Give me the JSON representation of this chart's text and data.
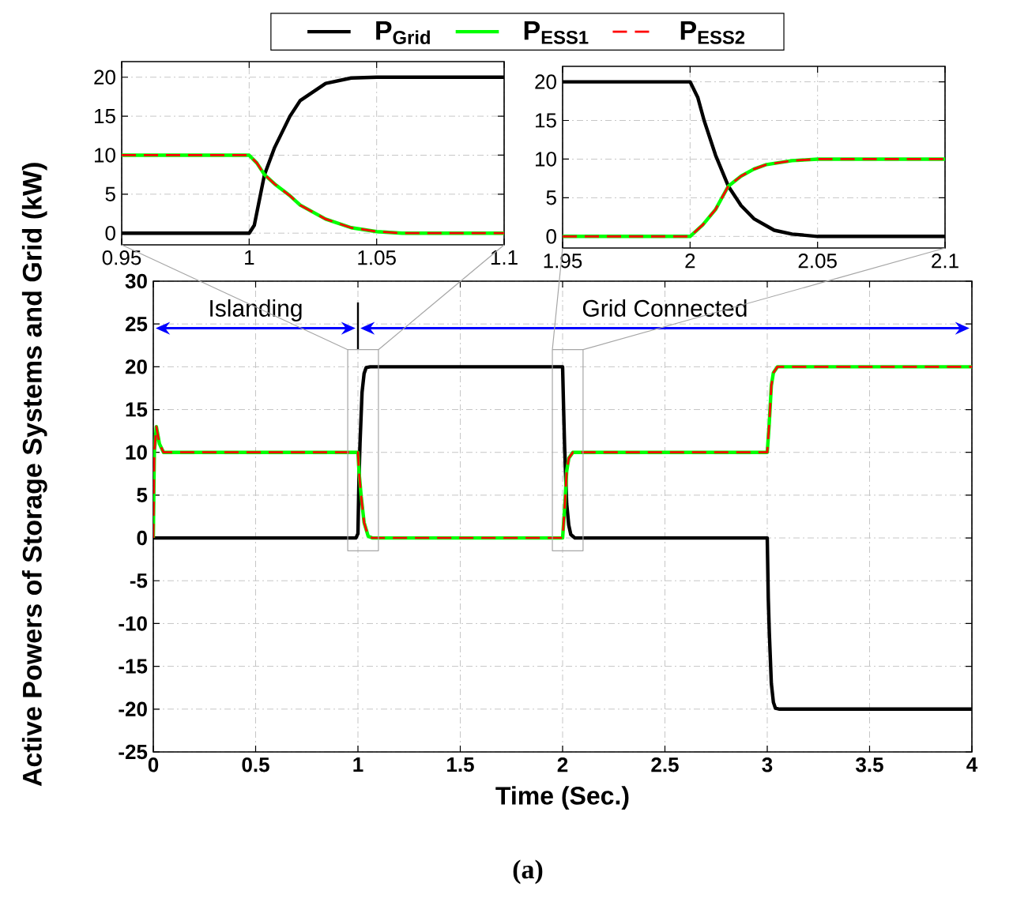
{
  "chart_data": [
    {
      "type": "line",
      "xlabel": "Time (Sec.)",
      "ylabel": "Active Powers of Storage Systems and Grid (kW)",
      "xlim": [
        0,
        4
      ],
      "ylim": [
        -25,
        30
      ],
      "xticks": [
        0,
        0.5,
        1,
        1.5,
        2,
        2.5,
        3,
        3.5,
        4
      ],
      "yticks": [
        -25,
        -20,
        -15,
        -10,
        -5,
        0,
        5,
        10,
        15,
        20,
        25,
        30
      ],
      "grid": true,
      "legend": "top",
      "marker": "none",
      "ref_lines": [
        {
          "axis": "x",
          "value": 1,
          "color": "#000000"
        }
      ],
      "annotations": [
        "Islanding",
        "Grid Connected",
        "(a)"
      ],
      "series": [
        {
          "name": "P$_{Grid}$",
          "color": "#000000",
          "line_style": "solid",
          "x": [
            0,
            0.99,
            1.0,
            1.005,
            1.01,
            1.02,
            1.03,
            1.04,
            1.06,
            2.0,
            2.005,
            2.01,
            2.02,
            2.03,
            2.04,
            2.06,
            3.0,
            3.005,
            3.01,
            3.02,
            3.03,
            3.04,
            3.06,
            4
          ],
          "values": [
            0,
            0,
            0.5,
            7,
            11,
            17,
            19.2,
            19.9,
            20,
            20,
            15,
            10.5,
            4,
            1.5,
            0.4,
            0,
            0,
            -7,
            -11,
            -17,
            -19.2,
            -19.9,
            -20,
            -20
          ]
        },
        {
          "name": "P$_{ESS1}$",
          "color": "#00ff00",
          "line_style": "solid",
          "x": [
            0,
            0.005,
            0.015,
            0.03,
            0.05,
            1.0,
            1.006,
            1.016,
            1.03,
            1.05,
            1.07,
            2.0,
            2.01,
            2.02,
            2.03,
            2.05,
            2.07,
            3.0,
            3.01,
            3.02,
            3.03,
            3.05,
            3.07,
            4
          ],
          "values": [
            0,
            10,
            13,
            11,
            10,
            10,
            7.5,
            4.8,
            1.8,
            0.2,
            0,
            0,
            3.5,
            7.8,
            9.3,
            10,
            10,
            10,
            13.5,
            17.8,
            19.3,
            20,
            20,
            20
          ]
        },
        {
          "name": "P$_{ESS2}$",
          "color": "#ff0000",
          "line_style": "dashed",
          "x": [
            0,
            0.005,
            0.015,
            0.03,
            0.05,
            1.0,
            1.006,
            1.016,
            1.03,
            1.05,
            1.07,
            2.0,
            2.01,
            2.02,
            2.03,
            2.05,
            2.07,
            3.0,
            3.01,
            3.02,
            3.03,
            3.05,
            3.07,
            4
          ],
          "values": [
            0,
            10,
            13,
            11,
            10,
            10,
            7.5,
            4.8,
            1.8,
            0.2,
            0,
            0,
            3.5,
            7.8,
            9.3,
            10,
            10,
            10,
            13.5,
            17.8,
            19.3,
            20,
            20,
            20
          ]
        }
      ]
    },
    {
      "type": "line",
      "xlim": [
        0.95,
        1.1
      ],
      "ylim": [
        -1.5,
        22
      ],
      "xticks": [
        0.95,
        1,
        1.05,
        1.1
      ],
      "yticks": [
        0,
        5,
        10,
        15,
        20
      ],
      "grid": true,
      "marker": "none",
      "series": [
        {
          "color": "#000000",
          "line_style": "solid",
          "x": [
            0.95,
            1.0,
            1.002,
            1.006,
            1.01,
            1.016,
            1.02,
            1.03,
            1.04,
            1.05,
            1.1
          ],
          "values": [
            0,
            0,
            1,
            7.5,
            11,
            15,
            17,
            19.2,
            19.9,
            20,
            20
          ]
        },
        {
          "color": "#00ff00",
          "line_style": "solid",
          "x": [
            0.95,
            1.0,
            1.003,
            1.006,
            1.01,
            1.016,
            1.02,
            1.03,
            1.04,
            1.05,
            1.06,
            1.1
          ],
          "values": [
            10,
            10,
            9,
            7.5,
            6.3,
            4.8,
            3.6,
            1.8,
            0.7,
            0.2,
            0,
            0
          ]
        },
        {
          "color": "#ff0000",
          "line_style": "dashed",
          "x": [
            0.95,
            1.0,
            1.003,
            1.006,
            1.01,
            1.016,
            1.02,
            1.03,
            1.04,
            1.05,
            1.06,
            1.1
          ],
          "values": [
            10,
            10,
            9,
            7.5,
            6.3,
            4.8,
            3.6,
            1.8,
            0.7,
            0.2,
            0,
            0
          ]
        }
      ]
    },
    {
      "type": "line",
      "xlim": [
        1.95,
        2.1
      ],
      "ylim": [
        -1.5,
        22
      ],
      "xticks": [
        1.95,
        2,
        2.05,
        2.1
      ],
      "yticks": [
        0,
        5,
        10,
        15,
        20
      ],
      "grid": true,
      "marker": "none",
      "series": [
        {
          "color": "#000000",
          "line_style": "solid",
          "x": [
            1.95,
            2.0,
            2.003,
            2.0055,
            2.01,
            2.015,
            2.02,
            2.025,
            2.033,
            2.04,
            2.05,
            2.1
          ],
          "values": [
            20,
            20,
            18,
            15,
            10.5,
            6.5,
            4,
            2.3,
            0.8,
            0.3,
            0,
            0
          ]
        },
        {
          "color": "#00ff00",
          "line_style": "solid",
          "x": [
            1.95,
            2.0,
            2.005,
            2.01,
            2.015,
            2.02,
            2.025,
            2.03,
            2.04,
            2.05,
            2.1
          ],
          "values": [
            0,
            0,
            1.5,
            3.5,
            6.5,
            7.8,
            8.7,
            9.3,
            9.8,
            10,
            10
          ]
        },
        {
          "color": "#ff0000",
          "line_style": "dashed",
          "x": [
            1.95,
            2.0,
            2.005,
            2.01,
            2.015,
            2.02,
            2.025,
            2.03,
            2.04,
            2.05,
            2.1
          ],
          "values": [
            0,
            0,
            1.5,
            3.5,
            6.5,
            7.8,
            8.7,
            9.3,
            9.8,
            10,
            10
          ]
        }
      ]
    }
  ]
}
